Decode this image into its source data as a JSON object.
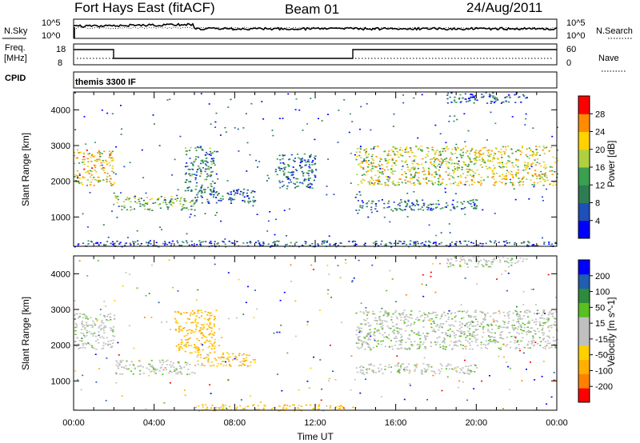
{
  "header": {
    "station": "Fort Hays East (fitACF)",
    "beam": "Beam 01",
    "date": "24/Aug/2011"
  },
  "noise_panel": {
    "left_label": "N.Sky",
    "left_ticks": [
      "10^5",
      "10^0"
    ],
    "right_label": "N.Search",
    "right_ticks": [
      "10^5",
      "10^0"
    ]
  },
  "freq_panel": {
    "left_label_1": "Freq.",
    "left_label_2": "[MHz]",
    "left_ticks": [
      "18",
      "8"
    ],
    "right_label": "Nave",
    "right_ticks": [
      "60",
      "0"
    ]
  },
  "cpid": {
    "label": "CPID",
    "value": "themis 3300 IF"
  },
  "x_axis": {
    "label": "Time UT",
    "ticks": [
      "00:00",
      "04:00",
      "08:00",
      "12:00",
      "16:00",
      "20:00",
      "00:00"
    ]
  },
  "range_axis": {
    "label": "Slant Range [km]",
    "ticks": [
      "1000",
      "2000",
      "3000",
      "4000"
    ]
  },
  "colors": {
    "power": [
      "#0000ff",
      "#1f4fb8",
      "#2e7d52",
      "#3aa050",
      "#b0d040",
      "#ffd200",
      "#ff8c00",
      "#ff0000"
    ],
    "velocity": [
      "#ff0000",
      "#ff8000",
      "#ffb000",
      "#ffd000",
      "#c0c0c0",
      "#c0c0c0",
      "#58c020",
      "#2e8b3e",
      "#205fb0",
      "#0000ff"
    ]
  },
  "chart_data": [
    {
      "type": "heatmap",
      "name": "Power",
      "xlabel": "Time UT",
      "ylabel": "Slant Range [km]",
      "xlim": [
        "00:00",
        "24:00"
      ],
      "ylim": [
        180,
        4500
      ],
      "colorbar": {
        "label": "Power [dB]",
        "ticks": [
          "4",
          "8",
          "12",
          "16",
          "20",
          "24",
          "28"
        ],
        "range": [
          0,
          30
        ]
      },
      "features": [
        {
          "t0": 0.0,
          "t1": 2.0,
          "r0": 1900,
          "r1": 2900,
          "value": 20
        },
        {
          "t0": 2.0,
          "t1": 6.0,
          "r0": 1200,
          "r1": 1600,
          "value": 14
        },
        {
          "t0": 5.5,
          "t1": 7.0,
          "r0": 1700,
          "r1": 3000,
          "value": 10
        },
        {
          "t0": 6.0,
          "t1": 9.0,
          "r0": 1400,
          "r1": 1800,
          "value": 8
        },
        {
          "t0": 10.0,
          "t1": 12.0,
          "r0": 1800,
          "r1": 2800,
          "value": 8
        },
        {
          "t0": 14.0,
          "t1": 24.0,
          "r0": 1900,
          "r1": 3000,
          "value": 18
        },
        {
          "t0": 14.0,
          "t1": 20.0,
          "r0": 1200,
          "r1": 1500,
          "value": 8
        },
        {
          "t0": 18.5,
          "t1": 22.5,
          "r0": 4200,
          "r1": 4500,
          "value": 6
        },
        {
          "t0": 0.0,
          "t1": 24.0,
          "r0": 180,
          "r1": 350,
          "value": 6
        }
      ]
    },
    {
      "type": "heatmap",
      "name": "Velocity",
      "xlabel": "Time UT",
      "ylabel": "Slant Range [km]",
      "xlim": [
        "00:00",
        "24:00"
      ],
      "ylim": [
        180,
        4500
      ],
      "colorbar": {
        "label": "Velocity [m s^-1]",
        "ticks": [
          "-200",
          "-100",
          "-50",
          "-15",
          "15",
          "50",
          "100",
          "200"
        ],
        "range": [
          -250,
          250
        ]
      },
      "features": [
        {
          "t0": 0.0,
          "t1": 2.0,
          "r0": 1900,
          "r1": 2900,
          "value": 0
        },
        {
          "t0": 2.0,
          "t1": 6.0,
          "r0": 1200,
          "r1": 1600,
          "value": 0
        },
        {
          "t0": 5.0,
          "t1": 7.0,
          "r0": 1800,
          "r1": 3000,
          "value": -60
        },
        {
          "t0": 6.0,
          "t1": 9.0,
          "r0": 1400,
          "r1": 1800,
          "value": -45
        },
        {
          "t0": 14.0,
          "t1": 24.0,
          "r0": 1900,
          "r1": 3000,
          "value": 0
        },
        {
          "t0": 14.0,
          "t1": 20.0,
          "r0": 1200,
          "r1": 1500,
          "value": 0
        },
        {
          "t0": 18.5,
          "t1": 22.5,
          "r0": 4200,
          "r1": 4500,
          "value": 0
        },
        {
          "t0": 6.0,
          "t1": 14.0,
          "r0": 180,
          "r1": 350,
          "value": -45
        }
      ]
    }
  ]
}
